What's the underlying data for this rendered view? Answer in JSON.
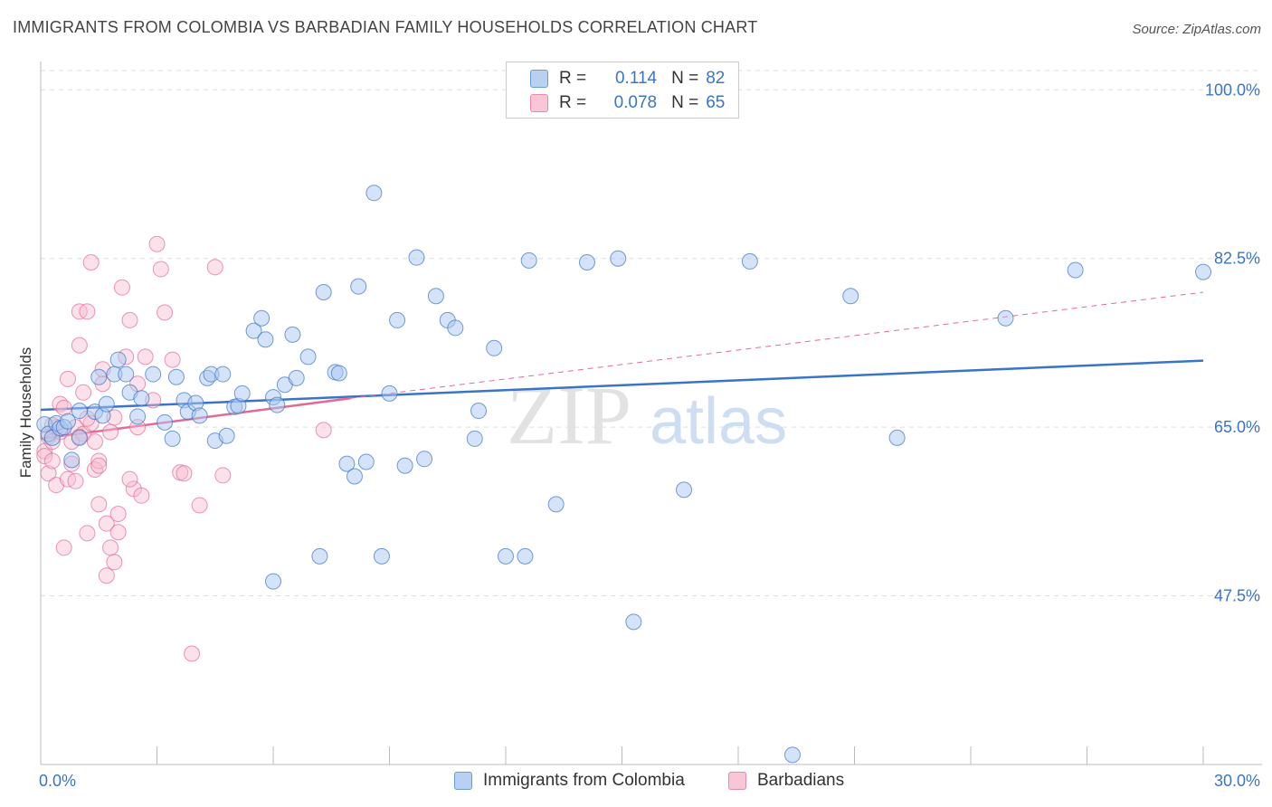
{
  "title": "IMMIGRANTS FROM COLOMBIA VS BARBADIAN FAMILY HOUSEHOLDS CORRELATION CHART",
  "source": "Source: ZipAtlas.com",
  "watermark": {
    "zip": "ZIP",
    "atlas": "atlas"
  },
  "legend": [
    {
      "r_label": "R =",
      "r_value": "0.114",
      "n_label": "N =",
      "n_value": "82"
    },
    {
      "r_label": "R =",
      "r_value": "0.078",
      "n_label": "N =",
      "n_value": "65"
    }
  ],
  "colors": {
    "blue": "#3a74c9",
    "blue_fill": "#a9c7ef",
    "pink": "#e46a96",
    "pink_fill": "#f6bccf",
    "axis_text": "#3a74c9"
  },
  "chart_data": {
    "type": "scatter",
    "title": "IMMIGRANTS FROM COLOMBIA VS BARBADIAN FAMILY HOUSEHOLDS CORRELATION CHART",
    "xlabel": "",
    "ylabel": "Family Households",
    "xlim": [
      0,
      30
    ],
    "ylim": [
      30,
      102
    ],
    "x_tick_labels": [
      "0.0%",
      "30.0%"
    ],
    "y_ticks": [
      47.5,
      65.0,
      82.5,
      100.0
    ],
    "y_tick_labels": [
      "47.5%",
      "65.0%",
      "82.5%",
      "100.0%"
    ],
    "series": [
      {
        "name": "Immigrants from Colombia",
        "color": "#3a74c9",
        "trend": {
          "x": [
            0,
            30
          ],
          "y": [
            66.8,
            71.9
          ]
        },
        "points": [
          [
            0.1,
            65.3
          ],
          [
            0.2,
            64.3
          ],
          [
            0.3,
            63.9
          ],
          [
            0.4,
            65.4
          ],
          [
            0.5,
            64.9
          ],
          [
            0.6,
            65.0
          ],
          [
            0.7,
            65.6
          ],
          [
            0.8,
            61.6
          ],
          [
            1.0,
            63.9
          ],
          [
            1.0,
            66.7
          ],
          [
            1.4,
            66.6
          ],
          [
            1.5,
            70.2
          ],
          [
            1.6,
            66.2
          ],
          [
            1.7,
            67.4
          ],
          [
            1.9,
            70.5
          ],
          [
            2.0,
            72.0
          ],
          [
            2.2,
            70.5
          ],
          [
            2.3,
            68.6
          ],
          [
            2.5,
            66.1
          ],
          [
            2.6,
            68.0
          ],
          [
            2.9,
            70.5
          ],
          [
            3.2,
            65.5
          ],
          [
            3.4,
            63.8
          ],
          [
            3.5,
            70.2
          ],
          [
            3.7,
            67.8
          ],
          [
            3.8,
            66.6
          ],
          [
            4.0,
            67.5
          ],
          [
            4.1,
            66.2
          ],
          [
            4.3,
            70.1
          ],
          [
            4.4,
            70.5
          ],
          [
            4.5,
            63.6
          ],
          [
            4.7,
            70.5
          ],
          [
            4.8,
            64.1
          ],
          [
            5.0,
            67.1
          ],
          [
            5.1,
            67.2
          ],
          [
            5.2,
            68.5
          ],
          [
            5.5,
            75.0
          ],
          [
            5.7,
            76.3
          ],
          [
            5.8,
            74.1
          ],
          [
            6.0,
            68.1
          ],
          [
            6.1,
            67.3
          ],
          [
            6.3,
            69.4
          ],
          [
            6.5,
            74.6
          ],
          [
            6.6,
            70.1
          ],
          [
            6.9,
            72.3
          ],
          [
            7.2,
            51.6
          ],
          [
            7.3,
            79.0
          ],
          [
            7.6,
            70.7
          ],
          [
            7.7,
            70.6
          ],
          [
            7.9,
            61.2
          ],
          [
            8.1,
            59.9
          ],
          [
            8.2,
            79.6
          ],
          [
            8.4,
            61.4
          ],
          [
            8.6,
            89.3
          ],
          [
            8.8,
            51.6
          ],
          [
            9.0,
            68.5
          ],
          [
            9.2,
            76.1
          ],
          [
            9.4,
            61.0
          ],
          [
            9.7,
            82.6
          ],
          [
            9.9,
            61.7
          ],
          [
            10.2,
            78.6
          ],
          [
            10.5,
            76.1
          ],
          [
            10.7,
            75.3
          ],
          [
            11.2,
            63.8
          ],
          [
            11.3,
            66.7
          ],
          [
            11.7,
            73.2
          ],
          [
            12.0,
            51.6
          ],
          [
            12.5,
            51.6
          ],
          [
            12.6,
            82.3
          ],
          [
            13.3,
            57.0
          ],
          [
            14.1,
            82.1
          ],
          [
            14.9,
            82.5
          ],
          [
            15.3,
            44.8
          ],
          [
            16.6,
            58.5
          ],
          [
            18.3,
            82.2
          ],
          [
            19.4,
            31.0
          ],
          [
            20.9,
            78.6
          ],
          [
            22.1,
            63.9
          ],
          [
            24.9,
            76.3
          ],
          [
            26.7,
            81.3
          ],
          [
            30.0,
            81.1
          ],
          [
            6.0,
            49.0
          ]
        ]
      },
      {
        "name": "Barbadians",
        "color": "#e46a96",
        "trend": {
          "x": [
            0,
            8
          ],
          "y": [
            63.8,
            68.0
          ]
        },
        "trend_extension": {
          "x": [
            8,
            30
          ],
          "y": [
            68.0,
            79.0
          ]
        },
        "points": [
          [
            0.1,
            62.5
          ],
          [
            0.1,
            62.0
          ],
          [
            0.2,
            64.0
          ],
          [
            0.2,
            60.2
          ],
          [
            0.3,
            63.5
          ],
          [
            0.3,
            61.5
          ],
          [
            0.4,
            59.0
          ],
          [
            0.4,
            65.0
          ],
          [
            0.5,
            67.4
          ],
          [
            0.5,
            64.5
          ],
          [
            0.6,
            67.0
          ],
          [
            0.6,
            52.5
          ],
          [
            0.7,
            59.6
          ],
          [
            0.7,
            70.0
          ],
          [
            0.8,
            63.5
          ],
          [
            0.8,
            61.2
          ],
          [
            0.9,
            59.4
          ],
          [
            0.9,
            65.0
          ],
          [
            1.0,
            73.5
          ],
          [
            1.0,
            77.0
          ],
          [
            1.1,
            64.3
          ],
          [
            1.1,
            68.6
          ],
          [
            1.2,
            77.0
          ],
          [
            1.2,
            54.0
          ],
          [
            1.3,
            65.4
          ],
          [
            1.3,
            82.1
          ],
          [
            1.4,
            63.5
          ],
          [
            1.4,
            60.6
          ],
          [
            1.5,
            61.5
          ],
          [
            1.5,
            57.0
          ],
          [
            1.6,
            71.0
          ],
          [
            1.6,
            69.5
          ],
          [
            1.7,
            55.0
          ],
          [
            1.7,
            49.6
          ],
          [
            1.8,
            64.5
          ],
          [
            1.8,
            52.5
          ],
          [
            1.9,
            51.0
          ],
          [
            1.9,
            66.0
          ],
          [
            2.0,
            54.1
          ],
          [
            2.0,
            56.0
          ],
          [
            2.1,
            79.5
          ],
          [
            2.2,
            72.3
          ],
          [
            2.3,
            76.1
          ],
          [
            2.4,
            58.6
          ],
          [
            2.5,
            69.5
          ],
          [
            2.5,
            65.0
          ],
          [
            2.6,
            57.9
          ],
          [
            2.7,
            72.3
          ],
          [
            2.9,
            67.8
          ],
          [
            3.0,
            84.0
          ],
          [
            3.1,
            81.4
          ],
          [
            3.2,
            76.9
          ],
          [
            3.4,
            72.0
          ],
          [
            3.6,
            60.3
          ],
          [
            3.7,
            60.2
          ],
          [
            3.9,
            41.5
          ],
          [
            4.1,
            56.9
          ],
          [
            4.5,
            81.6
          ],
          [
            4.7,
            60.0
          ],
          [
            7.3,
            64.7
          ],
          [
            1.5,
            61.0
          ],
          [
            0.3,
            65.2
          ],
          [
            1.2,
            65.9
          ],
          [
            2.3,
            59.6
          ],
          [
            1.0,
            64.0
          ]
        ]
      }
    ]
  },
  "axis": {
    "y_label": "Family Households"
  }
}
